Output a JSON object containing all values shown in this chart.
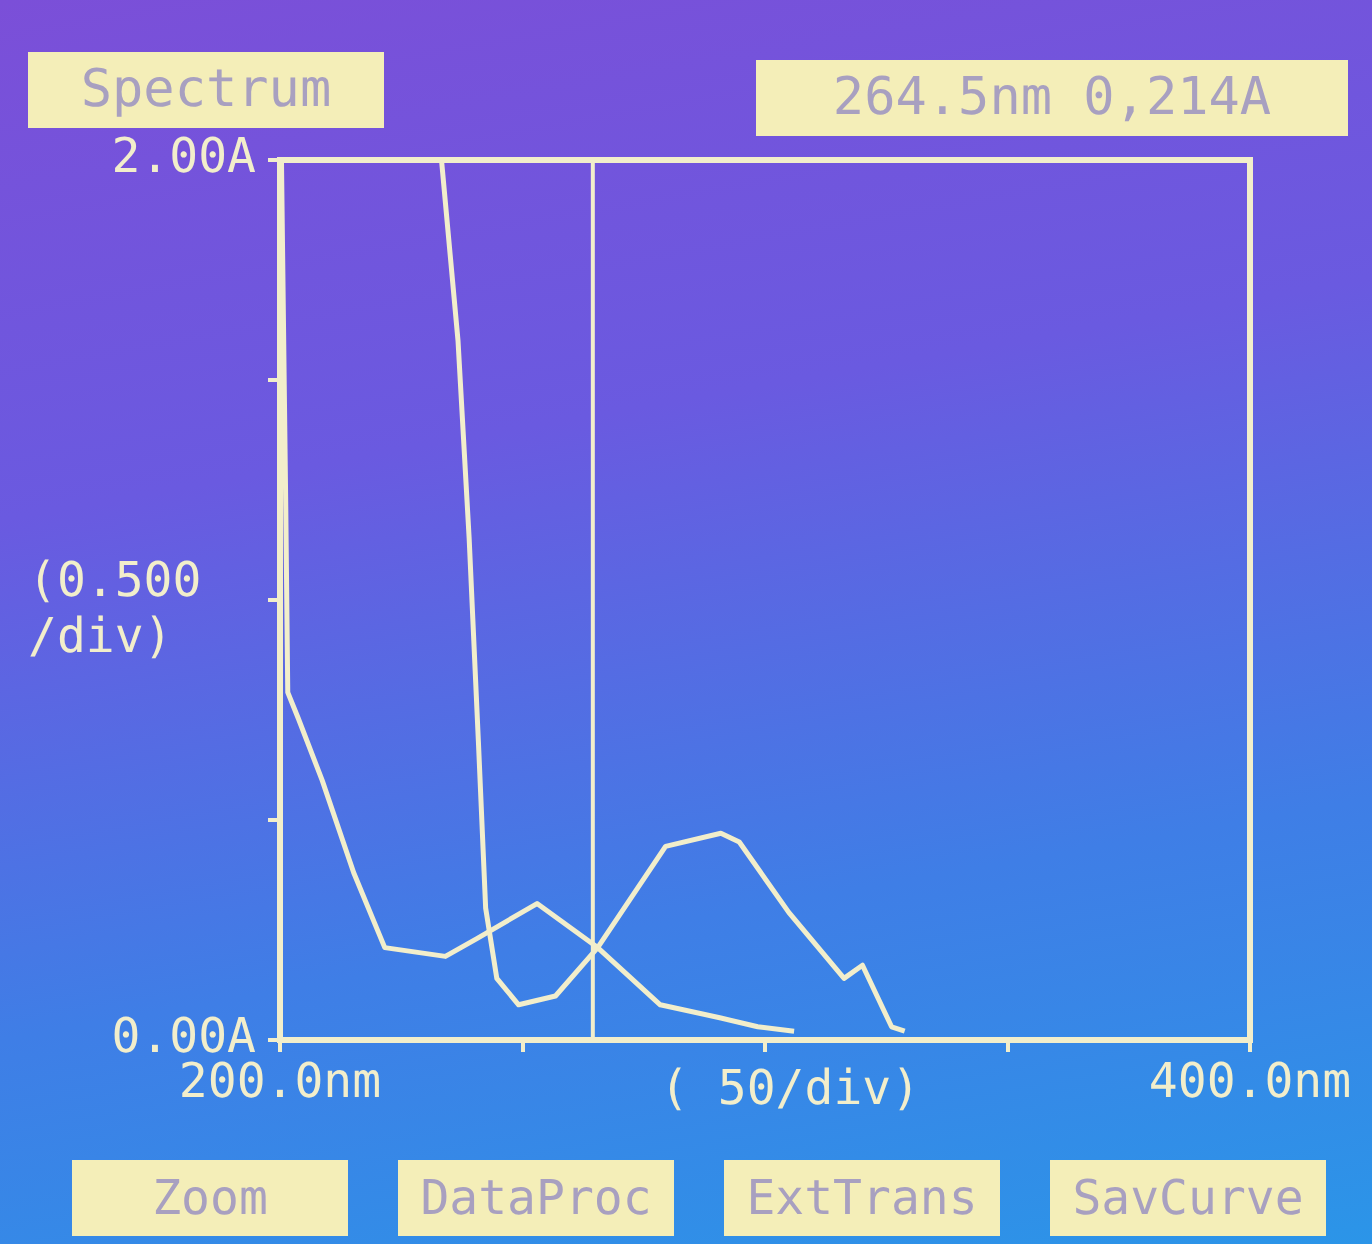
{
  "chart_data": {
    "type": "line",
    "title": "Spectrum",
    "xlabel": "( 50/div)",
    "ylabel": "(0.500 /div)",
    "annotations": [
      "264.5nm 0,214A",
      "Zoom",
      "DataProc",
      "ExtTrans",
      "SavCurve"
    ],
    "xlim": [
      200,
      400
    ],
    "xticks": [
      {
        "value": 200,
        "label": "200.0nm"
      },
      {
        "value": 250,
        "label": null
      },
      {
        "value": 300,
        "label": null
      },
      {
        "value": 350,
        "label": null
      },
      {
        "value": 400,
        "label": "400.0nm"
      }
    ],
    "ylim": [
      0,
      2
    ],
    "yticks": [
      {
        "value": 0,
        "label": "0.00A"
      },
      {
        "value": 0.5,
        "label": null
      },
      {
        "value": 1,
        "label": null
      },
      {
        "value": 1.5,
        "label": null
      },
      {
        "value": 2,
        "label": "2.00A"
      }
    ],
    "ref_lines": [
      {
        "axis": "x",
        "value": 264.5,
        "color": "#f2eecb"
      }
    ],
    "series": [
      {
        "color": "#f2eecb",
        "x": [
          200.3,
          201.2,
          201.6,
          203.8,
          208.7,
          215.2,
          221.6,
          234.1,
          240.5,
          253.0,
          265.5,
          278.4,
          290.9,
          298.5,
          306.0
        ],
        "values": [
          2.0,
          1.2,
          0.79,
          0.73,
          0.59,
          0.38,
          0.21,
          0.19,
          0.23,
          0.31,
          0.21,
          0.08,
          0.05,
          0.03,
          0.02
        ]
      },
      {
        "color": "#f2eecb",
        "x": [
          233.3,
          236.7,
          239.0,
          240.9,
          242.4,
          244.7,
          249.2,
          256.8,
          265.5,
          279.5,
          290.9,
          294.7,
          304.9,
          316.3,
          320.1,
          326.1,
          328.8
        ],
        "values": [
          2.0,
          1.59,
          1.14,
          0.68,
          0.3,
          0.14,
          0.08,
          0.1,
          0.21,
          0.44,
          0.47,
          0.45,
          0.29,
          0.14,
          0.17,
          0.03,
          0.02
        ]
      }
    ]
  }
}
